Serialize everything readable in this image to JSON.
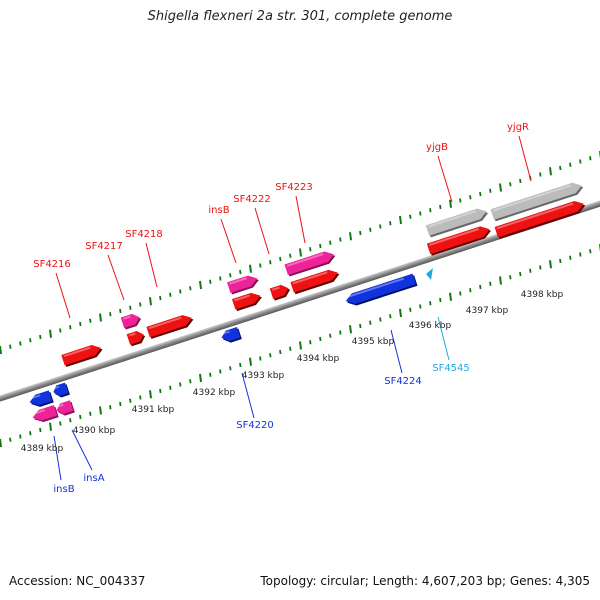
{
  "title": "Shigella flexneri 2a str. 301, complete genome",
  "footer": {
    "accession": "Accession: NC_004337",
    "summary": "Topology: circular; Length: 4,607,203 bp; Genes: 4,305"
  },
  "colors": {
    "forward_gene": "#ee1111",
    "forward_mobile": "#ee2299",
    "reverse_gene": "#1133dd",
    "reverse_label_light": "#22aadd",
    "pseudo_gene": "#bbbbbb",
    "backbone": "#888888",
    "ticks": "#117711"
  },
  "scale": {
    "labels": [
      "4389 kbp",
      "4390 kbp",
      "4391 kbp",
      "4392 kbp",
      "4393 kbp",
      "4394 kbp",
      "4395 kbp",
      "4396 kbp",
      "4397 kbp",
      "4398 kbp"
    ]
  },
  "genes": {
    "forward": [
      {
        "name": "SF4216",
        "color_key": "forward_gene"
      },
      {
        "name": "SF4217",
        "color_key": "forward_mobile"
      },
      {
        "name": "SF4218",
        "color_key": "forward_gene"
      },
      {
        "name": "insB",
        "color_key": "forward_mobile"
      },
      {
        "name": "SF4222",
        "color_key": "forward_gene"
      },
      {
        "name": "SF4223",
        "color_key": "forward_mobile"
      },
      {
        "name": "yjgB",
        "color_key": "forward_gene"
      },
      {
        "name": "yjgR",
        "color_key": "forward_gene"
      }
    ],
    "reverse": [
      {
        "name": "insB",
        "color_key": "reverse_gene"
      },
      {
        "name": "insA",
        "color_key": "reverse_gene"
      },
      {
        "name": "SF4220",
        "color_key": "reverse_gene"
      },
      {
        "name": "SF4224",
        "color_key": "reverse_gene"
      },
      {
        "name": "SF4545",
        "color_key": "reverse_label_light"
      }
    ]
  }
}
